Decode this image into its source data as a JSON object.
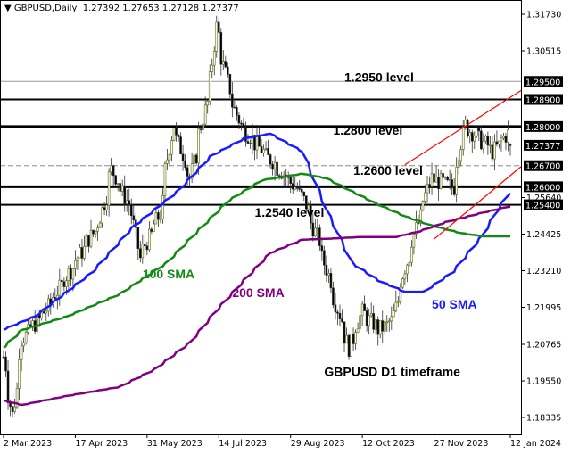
{
  "header": {
    "arrow_icon": "triangle-down-icon",
    "symbol": "GBPUSD,Daily",
    "ohlc": "1.27392 1.27653 1.27128 1.27377"
  },
  "chart_data": {
    "type": "candlestick",
    "symbol": "GBPUSD",
    "timeframe": "Daily",
    "last_ohlc": {
      "open": 1.27392,
      "high": 1.27653,
      "low": 1.27128,
      "close": 1.27377
    },
    "ylim": [
      1.1775,
      1.322
    ],
    "y_ticks": [
      "1.31730",
      "1.30515",
      "1.25640",
      "1.24425",
      "1.23210",
      "1.21995",
      "1.20765",
      "1.19550",
      "1.18335"
    ],
    "x_ticks": [
      {
        "date": "2023-03-02",
        "label": "2 Mar 2023"
      },
      {
        "date": "2023-04-17",
        "label": "17 Apr 2023"
      },
      {
        "date": "2023-05-31",
        "label": "31 May 2023"
      },
      {
        "date": "2023-07-14",
        "label": "14 Jul 2023"
      },
      {
        "date": "2023-08-29",
        "label": "29 Aug 2023"
      },
      {
        "date": "2023-10-12",
        "label": "12 Oct 2023"
      },
      {
        "date": "2023-11-27",
        "label": "27 Nov 2023"
      },
      {
        "date": "2024-01-12",
        "label": "12 Jan 2024"
      }
    ],
    "price_path": [
      [
        "2023-03-02",
        1.2035
      ],
      [
        "2023-03-08",
        1.1843
      ],
      [
        "2023-03-14",
        1.2094
      ],
      [
        "2023-03-28",
        1.2183
      ],
      [
        "2023-04-14",
        1.2331
      ],
      [
        "2023-05-01",
        1.2479
      ],
      [
        "2023-05-09",
        1.2657
      ],
      [
        "2023-05-22",
        1.2509
      ],
      [
        "2023-05-26",
        1.2361
      ],
      [
        "2023-06-08",
        1.2509
      ],
      [
        "2023-06-16",
        1.2806
      ],
      [
        "2023-06-27",
        1.2628
      ],
      [
        "2023-07-10",
        1.2954
      ],
      [
        "2023-07-13",
        1.3132
      ],
      [
        "2023-07-21",
        1.2924
      ],
      [
        "2023-07-28",
        1.2806
      ],
      [
        "2023-08-11",
        1.2717
      ],
      [
        "2023-08-22",
        1.2657
      ],
      [
        "2023-09-05",
        1.2569
      ],
      [
        "2023-09-15",
        1.242
      ],
      [
        "2023-09-26",
        1.2213
      ],
      [
        "2023-10-04",
        1.2065
      ],
      [
        "2023-10-12",
        1.2183
      ],
      [
        "2023-10-23",
        1.2124
      ],
      [
        "2023-10-31",
        1.2154
      ],
      [
        "2023-11-08",
        1.2331
      ],
      [
        "2023-11-16",
        1.2479
      ],
      [
        "2023-11-24",
        1.2628
      ],
      [
        "2023-12-08",
        1.2598
      ],
      [
        "2023-12-15",
        1.2806
      ],
      [
        "2023-12-27",
        1.2747
      ],
      [
        "2024-01-02",
        1.2717
      ],
      [
        "2024-01-11",
        1.2776
      ],
      [
        "2024-01-12",
        1.27377
      ]
    ],
    "sma": [
      {
        "name": "50 SMA",
        "color": "#1a1aff",
        "points": [
          [
            "2023-03-02",
            1.2125
          ],
          [
            "2023-03-22",
            1.2169
          ],
          [
            "2023-04-27",
            1.2317
          ],
          [
            "2023-05-22",
            1.2465
          ],
          [
            "2023-06-19",
            1.2584
          ],
          [
            "2023-07-10",
            1.2702
          ],
          [
            "2023-07-31",
            1.2761
          ],
          [
            "2023-08-16",
            1.2776
          ],
          [
            "2023-09-05",
            1.2717
          ],
          [
            "2023-09-20",
            1.2524
          ],
          [
            "2023-10-06",
            1.2346
          ],
          [
            "2023-10-23",
            1.2287
          ],
          [
            "2023-11-08",
            1.2251
          ],
          [
            "2023-11-20",
            1.2251
          ],
          [
            "2023-12-08",
            1.2317
          ],
          [
            "2023-12-26",
            1.2435
          ],
          [
            "2024-01-05",
            1.2524
          ],
          [
            "2024-01-12",
            1.2578
          ]
        ]
      },
      {
        "name": "100 SMA",
        "color": "#138a13",
        "points": [
          [
            "2023-03-02",
            1.2065
          ],
          [
            "2023-03-14",
            1.2124
          ],
          [
            "2023-04-11",
            1.2169
          ],
          [
            "2023-05-14",
            1.2243
          ],
          [
            "2023-06-12",
            1.2346
          ],
          [
            "2023-07-04",
            1.2465
          ],
          [
            "2023-07-21",
            1.2554
          ],
          [
            "2023-08-11",
            1.2622
          ],
          [
            "2023-09-05",
            1.2643
          ],
          [
            "2023-09-20",
            1.2628
          ],
          [
            "2023-10-06",
            1.2584
          ],
          [
            "2023-10-23",
            1.2539
          ],
          [
            "2023-11-08",
            1.2502
          ],
          [
            "2023-11-24",
            1.2472
          ],
          [
            "2023-12-13",
            1.2446
          ],
          [
            "2023-12-27",
            1.2435
          ],
          [
            "2024-01-12",
            1.2435
          ]
        ]
      },
      {
        "name": "200 SMA",
        "color": "#800080",
        "points": [
          [
            "2023-03-02",
            1.189
          ],
          [
            "2023-03-14",
            1.1875
          ],
          [
            "2023-04-11",
            1.1905
          ],
          [
            "2023-05-14",
            1.1935
          ],
          [
            "2023-06-05",
            1.1994
          ],
          [
            "2023-06-27",
            1.2083
          ],
          [
            "2023-07-13",
            1.2187
          ],
          [
            "2023-07-31",
            1.2291
          ],
          [
            "2023-08-16",
            1.238
          ],
          [
            "2023-09-05",
            1.2424
          ],
          [
            "2023-09-20",
            1.2427
          ],
          [
            "2023-10-12",
            1.2433
          ],
          [
            "2023-11-02",
            1.2433
          ],
          [
            "2023-11-16",
            1.245
          ],
          [
            "2023-12-04",
            1.2483
          ],
          [
            "2023-12-26",
            1.2513
          ],
          [
            "2024-01-12",
            1.2534
          ]
        ]
      }
    ],
    "trendlines": [
      {
        "color": "#ff0000",
        "from": [
          "2023-11-08",
          1.2673
        ],
        "to": [
          "2024-01-12",
          1.2897
        ]
      },
      {
        "color": "#ff0000",
        "from": [
          "2023-11-27",
          1.2426
        ],
        "to": [
          "2024-01-12",
          1.2637
        ]
      }
    ],
    "levels": [
      {
        "price": 1.295,
        "label": "1.29500",
        "style": "thin",
        "color": "#999999"
      },
      {
        "price": 1.289,
        "label": "1.28900",
        "style": "medium",
        "color": "#000000"
      },
      {
        "price": 1.28,
        "label": "1.28000",
        "style": "thick",
        "color": "#000000"
      },
      {
        "price": 1.267,
        "label": "1.26700",
        "style": "dashed",
        "color": "#888888"
      },
      {
        "price": 1.26,
        "label": "1.26000",
        "style": "thick",
        "color": "#000000"
      },
      {
        "price": 1.254,
        "label": "1.25400",
        "style": "medium",
        "color": "#000000"
      }
    ],
    "current_price": {
      "price": 1.27377,
      "label": "1.27377"
    },
    "annotations": [
      {
        "text": "1.2950 level",
        "color": "#000000",
        "date": "2023-10-02",
        "price": 1.295
      },
      {
        "text": "1.2800 level",
        "color": "#000000",
        "date": "2023-09-25",
        "price": 1.2773
      },
      {
        "text": "1.2600 level",
        "color": "#000000",
        "date": "2023-10-06",
        "price": 1.264
      },
      {
        "text": "1.2540 level",
        "color": "#000000",
        "date": "2023-08-06",
        "price": 1.25
      },
      {
        "text": "100 SMA",
        "color": "#138a13",
        "date": "2023-05-27",
        "price": 1.2296
      },
      {
        "text": "200 SMA",
        "color": "#800080",
        "date": "2023-07-23",
        "price": 1.2234
      },
      {
        "text": "50 SMA",
        "color": "#1a1aff",
        "date": "2023-11-24",
        "price": 1.2195
      },
      {
        "text": "GBPUSD D1 timeframe",
        "color": "#000000",
        "date": "2023-09-19",
        "price": 1.1972
      }
    ]
  }
}
